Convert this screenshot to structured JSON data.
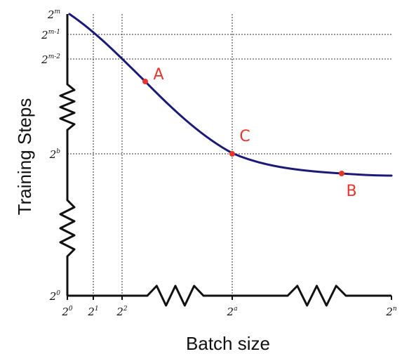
{
  "chart_data": {
    "type": "line",
    "xlabel": "Batch size",
    "ylabel": "Training Steps",
    "x_scale": "log2",
    "y_scale": "log2",
    "x_ticks": [
      {
        "base": "2",
        "exp": "0"
      },
      {
        "base": "2",
        "exp": "1"
      },
      {
        "base": "2",
        "exp": "2"
      },
      {
        "base": "2",
        "exp": "a"
      },
      {
        "base": "2",
        "exp": "n"
      }
    ],
    "y_ticks": [
      {
        "base": "2",
        "exp": "m"
      },
      {
        "base": "2",
        "exp": "m-1"
      },
      {
        "base": "2",
        "exp": "m-2"
      },
      {
        "base": "2",
        "exp": "b"
      },
      {
        "base": "2",
        "exp": "0"
      }
    ],
    "x_breaks": 2,
    "y_breaks": 2,
    "grid": "dotted at tick positions",
    "series": [
      {
        "color": "#1c1a78",
        "shape": "steep linear decline in log-log, bending into a flat plateau after point C",
        "points": [
          {
            "x": "2^0",
            "y": "2^m"
          },
          {
            "x": "2^1",
            "y": "2^(m-1)"
          },
          {
            "x": "2^2",
            "y": "2^(m-2)"
          },
          {
            "x": "2^a",
            "y": "2^b"
          },
          {
            "x": "2^n",
            "y": "just below 2^b"
          }
        ]
      }
    ],
    "marked_points": [
      {
        "label": "A",
        "color": "#e8352b"
      },
      {
        "label": "C",
        "color": "#e8352b",
        "x": "2^a",
        "y": "2^b"
      },
      {
        "label": "B",
        "color": "#e8352b"
      }
    ]
  }
}
